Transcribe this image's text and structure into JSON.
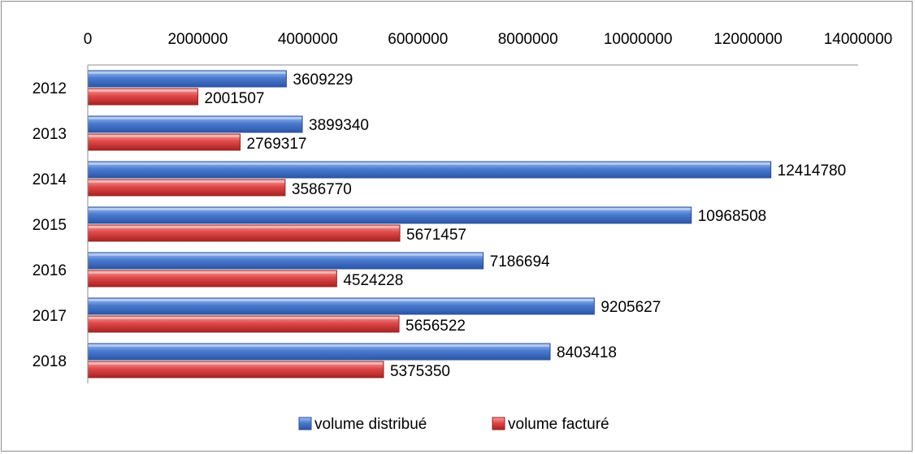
{
  "chart_data": {
    "type": "bar",
    "orientation": "horizontal",
    "categories": [
      "2012",
      "2013",
      "2014",
      "2015",
      "2016",
      "2017",
      "2018"
    ],
    "series": [
      {
        "name": "volume distribué",
        "color": "#4a7ad0",
        "values": [
          3609229,
          3899340,
          12414780,
          10968508,
          7186694,
          9205627,
          8403418
        ]
      },
      {
        "name": "volume facturé",
        "color": "#e04848",
        "values": [
          2001507,
          2769317,
          3586770,
          5671457,
          4524228,
          5656522,
          5375350
        ]
      }
    ],
    "xlim": [
      0,
      14000000
    ],
    "x_ticks": [
      "0",
      "2000000",
      "4000000",
      "6000000",
      "8000000",
      "10000000",
      "12000000",
      "14000000"
    ],
    "x_axis_position": "top",
    "grid": false,
    "data_labels": true,
    "legend_position": "bottom"
  }
}
